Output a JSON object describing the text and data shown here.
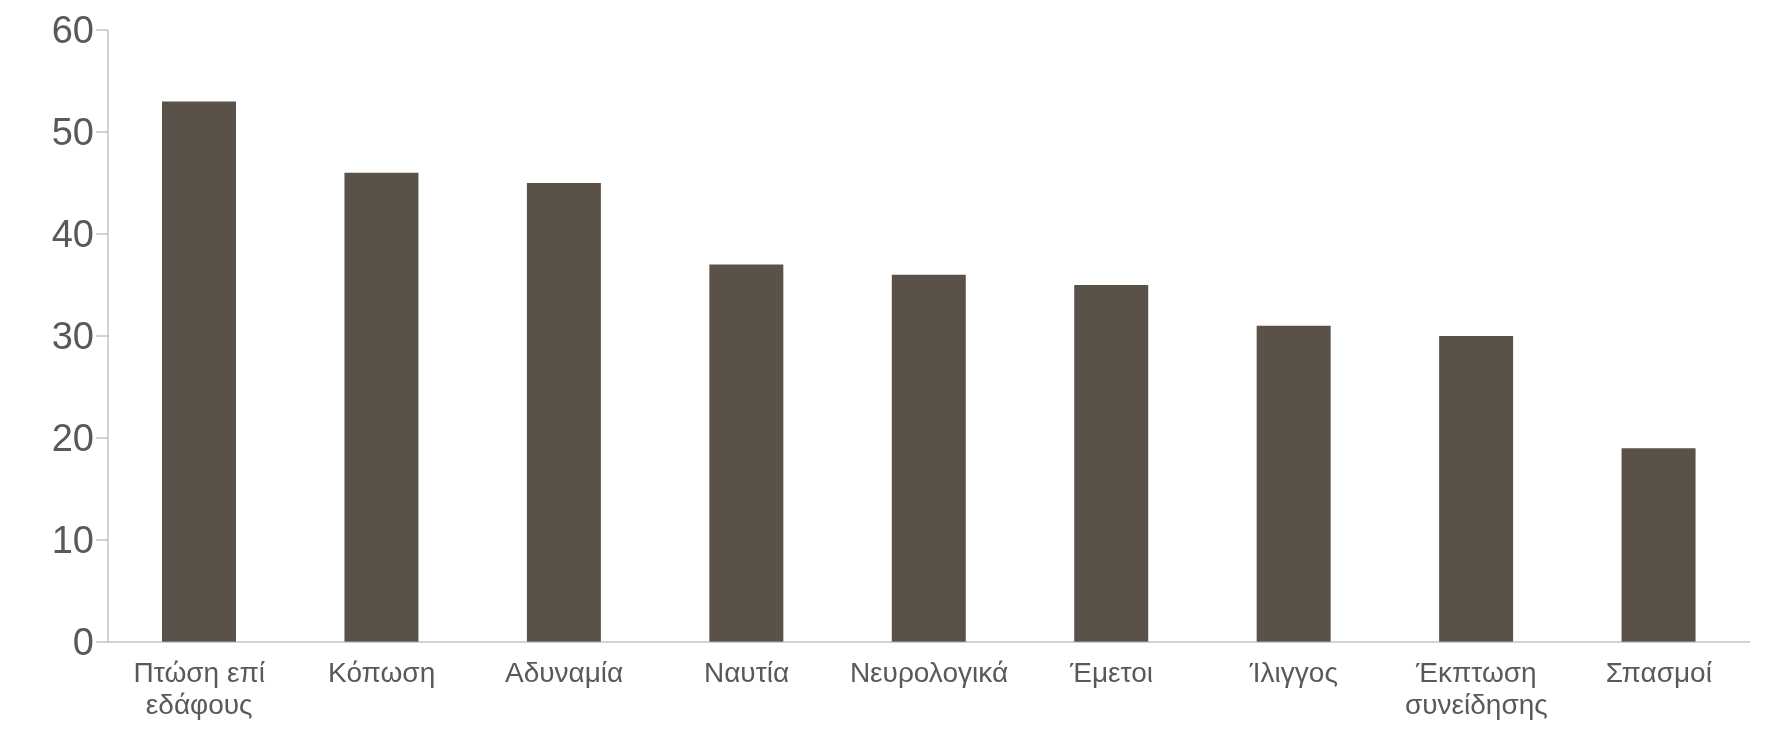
{
  "chart_data": {
    "type": "bar",
    "categories": [
      "Πτώση επί εδάφους",
      "Κόπωση",
      "Αδυναμία",
      "Ναυτία",
      "Νευρολογικά",
      "Έμετοι",
      "Ίλιγγος",
      "Έκπτωση συνείδησης",
      "Σπασμοί"
    ],
    "values": [
      53,
      46,
      45,
      37,
      36,
      35,
      31,
      30,
      19
    ],
    "color": "#5a5149",
    "ylim": [
      0,
      60
    ],
    "yticks": [
      0,
      10,
      20,
      30,
      40,
      50,
      60
    ],
    "grid": false,
    "legend": false
  }
}
